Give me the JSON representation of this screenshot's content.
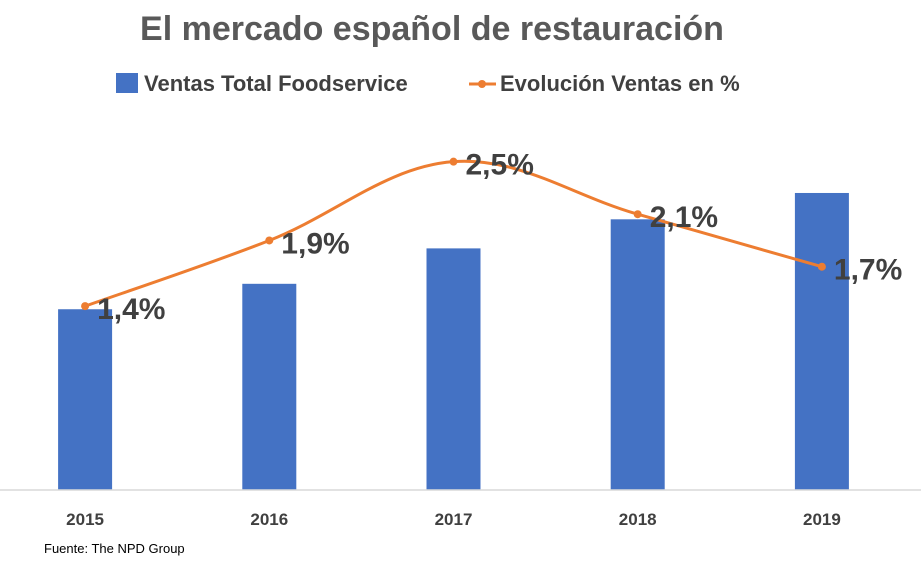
{
  "chart_data": {
    "type": "bar",
    "title": "El mercado español de restauración",
    "source": "Fuente: The NPD Group",
    "categories": [
      "2015",
      "2016",
      "2017",
      "2018",
      "2019"
    ],
    "series": [
      {
        "name": "Ventas Total Foodservice",
        "type": "bar",
        "color": "#4472C4",
        "values": [
          199,
          227,
          266,
          298,
          327
        ]
      },
      {
        "name": "Evolución Ventas en %",
        "type": "line",
        "color": "#ED7D31",
        "values": [
          1.4,
          1.9,
          2.5,
          2.1,
          1.7
        ],
        "labels": [
          "1,4%",
          "1,9%",
          "2,5%",
          "2,1%",
          "1,7%"
        ]
      }
    ],
    "bar_axis_range": [
      0,
      360
    ],
    "line_axis_range": [
      0,
      3.0
    ],
    "legend_position": "top",
    "grid": false
  }
}
